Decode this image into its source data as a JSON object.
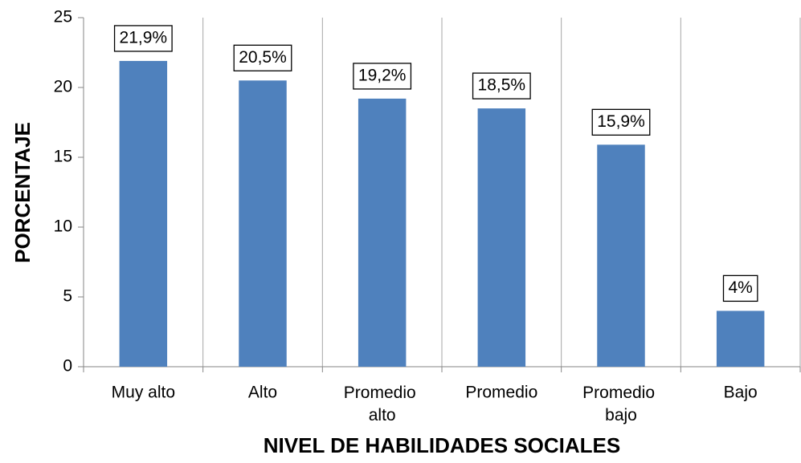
{
  "chart_data": {
    "type": "bar",
    "categories": [
      "Muy alto",
      "Alto",
      "Promedio alto",
      "Promedio",
      "Promedio bajo",
      "Bajo"
    ],
    "values": [
      21.9,
      20.5,
      19.2,
      18.5,
      15.9,
      4
    ],
    "value_labels": [
      "21,9%",
      "20,5%",
      "19,2%",
      "18,5%",
      "15,9%",
      "4%"
    ],
    "color": "#4f81bd",
    "ylim": [
      0,
      25
    ],
    "yticks": [
      0,
      5,
      10,
      15,
      20,
      25
    ],
    "y_label": "PORCENTAJE",
    "x_label": "NIVEL DE HABILIDADES SOCIALES",
    "grid": true
  }
}
